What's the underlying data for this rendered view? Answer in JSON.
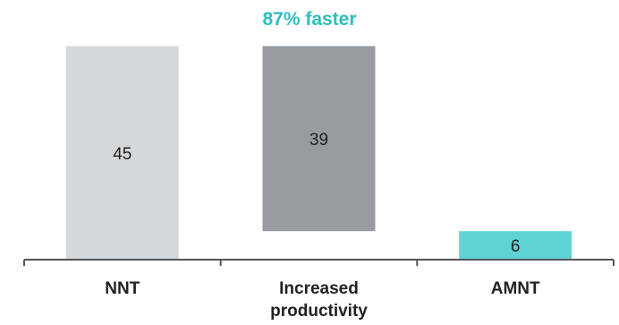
{
  "chart_data": {
    "type": "bar",
    "title": "87% faster",
    "categories": [
      [
        "NNT"
      ],
      [
        "Increased",
        "productivity"
      ],
      [
        "AMNT"
      ]
    ],
    "values": [
      45,
      39,
      6
    ],
    "value_labels": [
      "45",
      "39",
      "6"
    ],
    "waterfall": true,
    "colors": {
      "bar_1": "#d5d8da",
      "bar_2": "#989ca1",
      "bar_3": "#5ed3d4",
      "title": "#2ebfbe",
      "axis": "#555555"
    },
    "grid": false
  }
}
